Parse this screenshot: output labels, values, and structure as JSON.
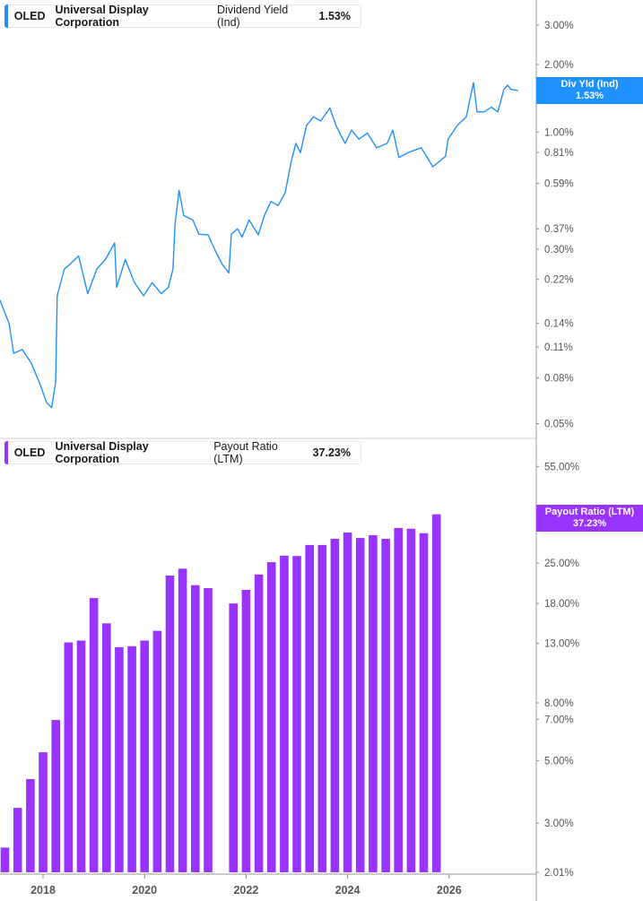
{
  "chart_data": [
    {
      "type": "line",
      "legend": {
        "ticker": "OLED",
        "company": "Universal Display Corporation",
        "metric": "Dividend Yield (Ind)",
        "value": "1.53%"
      },
      "badge": {
        "label": "Div Yld (Ind)",
        "value": "1.53%"
      },
      "color": "#1E90FF",
      "scale": "log",
      "ylim": [
        0.05,
        3.0
      ],
      "y_ticks": [
        "3.00%",
        "2.00%",
        "1.00%",
        "0.81%",
        "0.59%",
        "0.37%",
        "0.30%",
        "0.22%",
        "0.14%",
        "0.11%",
        "0.08%",
        "0.05%"
      ],
      "y_tick_values": [
        3.0,
        2.0,
        1.0,
        0.81,
        0.59,
        0.37,
        0.3,
        0.22,
        0.14,
        0.11,
        0.08,
        0.05
      ],
      "x": [
        2017.15,
        2017.33,
        2017.42,
        2017.59,
        2017.77,
        2017.95,
        2018.07,
        2018.17,
        2018.25,
        2018.28,
        2018.42,
        2018.53,
        2018.7,
        2018.88,
        2019.06,
        2019.23,
        2019.41,
        2019.45,
        2019.62,
        2019.8,
        2019.98,
        2020.15,
        2020.33,
        2020.47,
        2020.56,
        2020.6,
        2020.68,
        2020.77,
        2020.95,
        2021.07,
        2021.25,
        2021.39,
        2021.53,
        2021.66,
        2021.71,
        2021.83,
        2021.92,
        2022.06,
        2022.24,
        2022.36,
        2022.49,
        2022.63,
        2022.77,
        2022.89,
        2022.98,
        2023.07,
        2023.19,
        2023.33,
        2023.47,
        2023.65,
        2023.77,
        2023.95,
        2024.08,
        2024.22,
        2024.39,
        2024.57,
        2024.78,
        2024.89,
        2025.01,
        2025.19,
        2025.45,
        2025.68,
        2025.93,
        2025.98,
        2026.16,
        2026.34,
        2026.43,
        2026.48,
        2026.55,
        2026.69,
        2026.83,
        2026.96,
        2027.08,
        2027.15,
        2027.22,
        2027.36
      ],
      "y": [
        0.178,
        0.14,
        0.103,
        0.107,
        0.093,
        0.074,
        0.062,
        0.059,
        0.077,
        0.186,
        0.245,
        0.257,
        0.28,
        0.19,
        0.245,
        0.27,
        0.32,
        0.203,
        0.27,
        0.213,
        0.186,
        0.213,
        0.19,
        0.203,
        0.245,
        0.389,
        0.55,
        0.424,
        0.405,
        0.35,
        0.348,
        0.296,
        0.257,
        0.235,
        0.35,
        0.37,
        0.34,
        0.405,
        0.348,
        0.424,
        0.49,
        0.47,
        0.536,
        0.74,
        0.89,
        0.81,
        1.07,
        1.17,
        1.12,
        1.28,
        1.07,
        0.89,
        1.02,
        0.93,
        0.99,
        0.85,
        0.89,
        1.02,
        0.77,
        0.81,
        0.85,
        0.7,
        0.78,
        0.93,
        1.07,
        1.17,
        1.47,
        1.66,
        1.23,
        1.23,
        1.29,
        1.23,
        1.55,
        1.62,
        1.55,
        1.53
      ]
    },
    {
      "type": "bar",
      "legend": {
        "ticker": "OLED",
        "company": "Universal Display Corporation",
        "metric": "Payout Ratio (LTM)",
        "value": "37.23%"
      },
      "badge": {
        "label": "Payout Ratio (LTM)",
        "value": "37.23%"
      },
      "color": "#9933FF",
      "scale": "log",
      "ylim": [
        2.01,
        55.0
      ],
      "y_ticks": [
        "55.00%",
        "25.00%",
        "18.00%",
        "13.00%",
        "8.00%",
        "7.00%",
        "5.00%",
        "3.00%",
        "2.01%"
      ],
      "y_tick_values": [
        55,
        25,
        18,
        13,
        8,
        7,
        5,
        3,
        2.01
      ],
      "x_ticks": [
        "2018",
        "2020",
        "2022",
        "2024",
        "2026"
      ],
      "x_tick_values": [
        2018,
        2020,
        2022,
        2024,
        2026
      ],
      "categories": [
        "2017-Q1",
        "2017-Q2",
        "2017-Q3",
        "2017-Q4",
        "2018-Q1",
        "2018-Q2",
        "2018-Q3",
        "2018-Q4",
        "2019-Q1",
        "2019-Q2",
        "2019-Q3",
        "2019-Q4",
        "2020-Q1",
        "2020-Q2",
        "2020-Q3",
        "2020-Q4",
        "2021-Q1",
        "2021-Q2",
        "2021-Q3",
        "2021-Q4",
        "2022-Q1",
        "2022-Q2",
        "2022-Q3",
        "2022-Q4",
        "2023-Q1",
        "2023-Q2",
        "2023-Q3",
        "2023-Q4",
        "2024-Q1",
        "2024-Q2",
        "2024-Q3",
        "2024-Q4",
        "2025-Q1",
        "2025-Q2",
        "2025-Q3"
      ],
      "values": [
        2.46,
        3.4,
        4.3,
        5.35,
        6.96,
        13.1,
        13.3,
        18.8,
        15.3,
        12.6,
        12.7,
        13.3,
        14.4,
        22.6,
        23.9,
        20.9,
        20.4,
        null,
        18.0,
        20.1,
        22.8,
        25.2,
        26.6,
        26.5,
        29.0,
        29.0,
        30.5,
        32.1,
        30.7,
        31.4,
        30.5,
        33.3,
        33.1,
        31.9,
        37.23
      ]
    }
  ]
}
